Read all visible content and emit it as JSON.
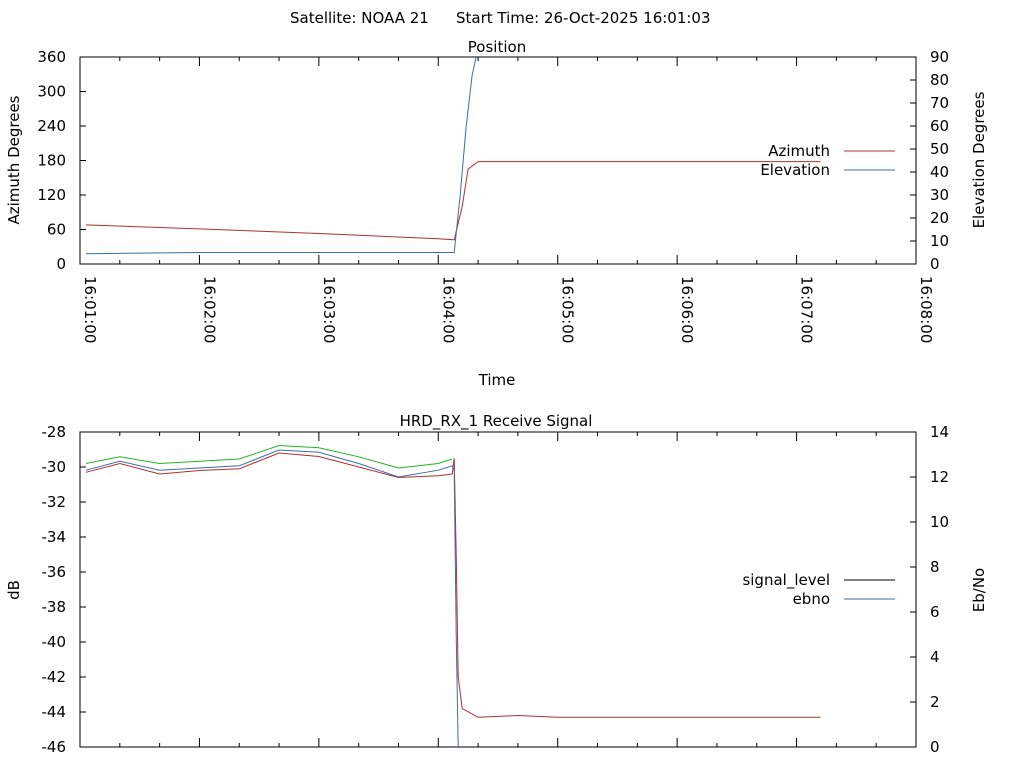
{
  "header": {
    "satellite": "Satellite: NOAA 21",
    "start_time": "Start Time: 26-Oct-2025 16:01:03"
  },
  "chart_data": [
    {
      "type": "line",
      "title": "Position",
      "xlabel": "Time",
      "ylabel": "Azimuth Degrees",
      "y2label": "Elevation Degrees",
      "xlim": [
        "16:01:00",
        "16:08:00"
      ],
      "xticks": [
        "16:01:00",
        "16:02:00",
        "16:03:00",
        "16:04:00",
        "16:05:00",
        "16:06:00",
        "16:07:00",
        "16:08:00"
      ],
      "ylim": [
        0,
        360
      ],
      "yticks": [
        "0",
        "60",
        "120",
        "180",
        "240",
        "300",
        "360"
      ],
      "y2lim": [
        0,
        90
      ],
      "y2ticks": [
        "0",
        "10",
        "20",
        "30",
        "40",
        "50",
        "60",
        "70",
        "80",
        "90"
      ],
      "legend_position": "right",
      "series": [
        {
          "name": "Azimuth",
          "axis": "y",
          "color": "#b03030",
          "x": [
            "16:01:03",
            "16:02:00",
            "16:03:00",
            "16:04:00",
            "16:04:08",
            "16:04:12",
            "16:04:15",
            "16:04:20",
            "16:05:00",
            "16:06:00",
            "16:07:00",
            "16:07:12"
          ],
          "y": [
            68,
            61,
            53,
            44,
            42,
            100,
            165,
            178,
            178,
            178,
            178,
            178
          ]
        },
        {
          "name": "Elevation",
          "axis": "y2",
          "color": "#3a6ea5",
          "x": [
            "16:01:03",
            "16:02:00",
            "16:03:00",
            "16:04:00",
            "16:04:08",
            "16:04:11",
            "16:04:14",
            "16:04:17",
            "16:04:19"
          ],
          "y": [
            4.5,
            5.0,
            5.0,
            5.0,
            5.0,
            30,
            60,
            82,
            90
          ]
        }
      ]
    },
    {
      "type": "line",
      "title": "HRD_RX_1 Receive Signal",
      "ylabel": "dB",
      "y2label": "Eb/No",
      "xlim": [
        "16:01:00",
        "16:08:00"
      ],
      "ylim": [
        -46,
        -28
      ],
      "yticks": [
        "-46",
        "-44",
        "-42",
        "-40",
        "-38",
        "-36",
        "-34",
        "-32",
        "-30",
        "-28"
      ],
      "y2lim": [
        0,
        14
      ],
      "y2ticks": [
        "0",
        "2",
        "4",
        "6",
        "8",
        "10",
        "12",
        "14"
      ],
      "legend_position": "right",
      "series": [
        {
          "name": "signal_level",
          "axis": "y",
          "color": "#b03030",
          "x": [
            "16:01:03",
            "16:01:20",
            "16:01:40",
            "16:02:00",
            "16:02:20",
            "16:02:40",
            "16:03:00",
            "16:03:20",
            "16:03:40",
            "16:04:00",
            "16:04:07",
            "16:04:08",
            "16:04:09",
            "16:04:10",
            "16:04:12",
            "16:04:20",
            "16:04:40",
            "16:05:00",
            "16:05:30",
            "16:06:00",
            "16:06:30",
            "16:07:00",
            "16:07:12"
          ],
          "y": [
            -30.3,
            -29.8,
            -30.4,
            -30.2,
            -30.1,
            -29.2,
            -29.4,
            -30.0,
            -30.6,
            -30.5,
            -30.4,
            -29.5,
            -35.0,
            -42.0,
            -43.8,
            -44.3,
            -44.2,
            -44.3,
            -44.3,
            -44.3,
            -44.3,
            -44.3,
            -44.3
          ]
        },
        {
          "name": "ebno",
          "axis": "y2",
          "color": "#3a6ea5",
          "x": [
            "16:01:03",
            "16:01:20",
            "16:01:40",
            "16:02:00",
            "16:02:20",
            "16:02:40",
            "16:03:00",
            "16:03:20",
            "16:03:40",
            "16:04:00",
            "16:04:07",
            "16:04:08",
            "16:04:09",
            "16:04:10"
          ],
          "y": [
            12.3,
            12.7,
            12.3,
            12.4,
            12.5,
            13.2,
            13.1,
            12.6,
            12.0,
            12.3,
            12.5,
            12.3,
            5.0,
            0.0
          ]
        },
        {
          "name": "",
          "axis": "y2",
          "color": "#22b522",
          "x": [
            "16:01:03",
            "16:01:20",
            "16:01:40",
            "16:02:00",
            "16:02:20",
            "16:02:40",
            "16:03:00",
            "16:03:20",
            "16:03:40",
            "16:04:00",
            "16:04:07"
          ],
          "y": [
            12.6,
            12.9,
            12.6,
            12.7,
            12.8,
            13.4,
            13.3,
            12.9,
            12.4,
            12.6,
            12.8
          ]
        }
      ]
    }
  ],
  "colors": {
    "azimuth": "#b03030",
    "elevation": "#3a6ea5",
    "signal_level": "#000000",
    "ebno": "#3a6ea5",
    "signal_trace": "#b03030",
    "ebno_alt": "#22b522"
  }
}
